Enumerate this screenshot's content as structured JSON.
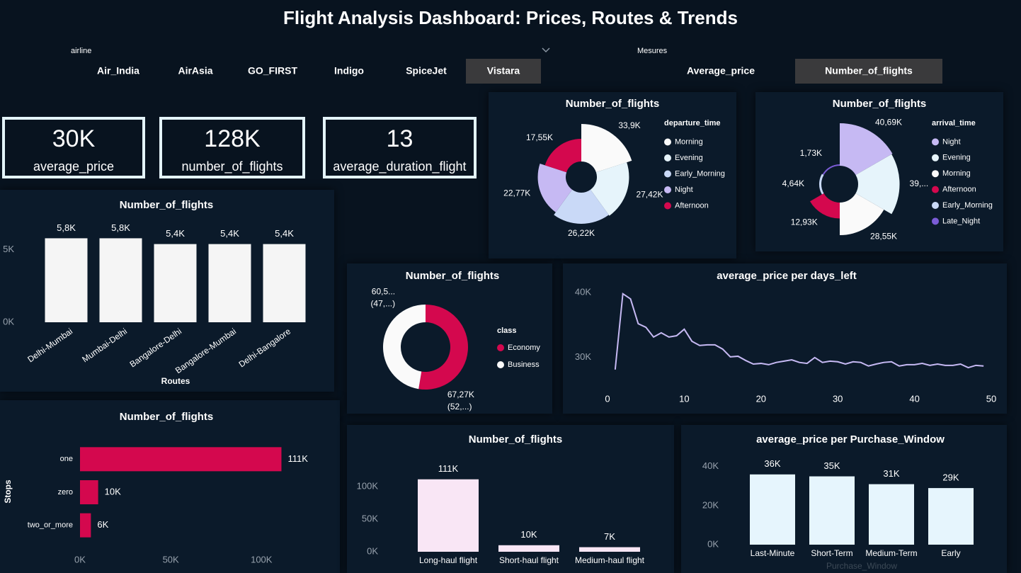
{
  "header": {
    "title": "Flight Analysis Dashboard: Prices, Routes & Trends"
  },
  "slicers": [
    {
      "label": "airline",
      "options": [
        "Air_India",
        "AirAsia",
        "GO_FIRST",
        "Indigo",
        "SpiceJet",
        "Vistara"
      ],
      "selected": "Vistara"
    },
    {
      "label": "Mesures",
      "options": [
        "Average_price",
        "Number_of_flights"
      ],
      "selected": "Number_of_flights"
    }
  ],
  "cards": [
    {
      "value": "30K",
      "label": "average_price"
    },
    {
      "value": "128K",
      "label": "number_of_flights"
    },
    {
      "value": "13",
      "label": "average_duration_flight"
    }
  ],
  "chart_data": [
    {
      "type": "rose",
      "title": "Number_of_flights",
      "legend_title": "departure_time",
      "categories": [
        "Morning",
        "Evening",
        "Early_Morning",
        "Night",
        "Afternoon"
      ],
      "values": [
        33.9,
        27.42,
        26.22,
        22.77,
        17.55
      ],
      "value_labels": [
        "33,9K",
        "27,42K",
        "26,22K",
        "22,77K",
        "17,55K"
      ],
      "colors": [
        "#fafafa",
        "#e6f4fb",
        "#c9d9f7",
        "#c6b9f3",
        "#d4084e"
      ]
    },
    {
      "type": "rose",
      "title": "Number_of_flights",
      "legend_title": "arrival_time",
      "categories": [
        "Night",
        "Evening",
        "Morning",
        "Afternoon",
        "Early_Morning",
        "Late_Night"
      ],
      "values": [
        40.69,
        39.32,
        28.55,
        12.93,
        4.64,
        1.73
      ],
      "value_labels": [
        "40,69K",
        "39,...",
        "28,55K",
        "12,93K",
        "4,64K",
        "1,73K"
      ],
      "colors": [
        "#c6b9f3",
        "#e6f4fb",
        "#fafafa",
        "#d4084e",
        "#c9d9f7",
        "#7b5cd6"
      ]
    },
    {
      "type": "bar",
      "title": "Number_of_flights",
      "x_label": "Routes",
      "categories": [
        "Delhi-Mumbai",
        "Mumbai-Delhi",
        "Bangalore-Delhi",
        "Bangalore-Mumbai",
        "Delhi-Bangalore"
      ],
      "values": [
        5800,
        5800,
        5400,
        5400,
        5400
      ],
      "value_labels": [
        "5,8K",
        "5,8K",
        "5,4K",
        "5,4K",
        "5,4K"
      ],
      "color": "#f5f5f5",
      "ylim": [
        0,
        6700
      ],
      "yticks": [
        {
          "value": 0,
          "label": "0K"
        },
        {
          "value": 5000,
          "label": "5K"
        }
      ]
    },
    {
      "type": "bar",
      "horizontal": true,
      "title": "Number_of_flights",
      "y_label": "Stops",
      "categories": [
        "one",
        "zero",
        "two_or_more"
      ],
      "values": [
        111000,
        10000,
        6000
      ],
      "value_labels": [
        "111K",
        "10K",
        "6K"
      ],
      "color": "#d4084e",
      "xlim": [
        0,
        135000
      ],
      "xticks": [
        {
          "value": 0,
          "label": "0K"
        },
        {
          "value": 50000,
          "label": "50K"
        },
        {
          "value": 100000,
          "label": "100K"
        }
      ]
    },
    {
      "type": "donut",
      "title": "Number_of_flights",
      "legend_title": "class",
      "categories": [
        "Economy",
        "Business"
      ],
      "values": [
        67.27,
        60.59
      ],
      "value_labels": [
        "67,27K",
        "60,5..."
      ],
      "percent_labels": [
        "(52,...)",
        "(47,...)"
      ],
      "colors": [
        "#d4084e",
        "#fafafa"
      ]
    },
    {
      "type": "line",
      "title": "average_price per days_left",
      "x": [
        1,
        2,
        3,
        4,
        5,
        6,
        7,
        8,
        9,
        10,
        11,
        12,
        13,
        14,
        15,
        16,
        17,
        18,
        19,
        20,
        21,
        22,
        23,
        24,
        25,
        26,
        27,
        28,
        29,
        30,
        31,
        32,
        33,
        34,
        35,
        36,
        37,
        38,
        39,
        40,
        41,
        42,
        43,
        44,
        45,
        46,
        47,
        48,
        49
      ],
      "values": [
        28150,
        39800,
        39000,
        35200,
        34650,
        33150,
        33800,
        33150,
        33350,
        34350,
        32500,
        31850,
        31950,
        31950,
        31300,
        30100,
        30200,
        29550,
        29000,
        29100,
        28900,
        29250,
        29450,
        29650,
        29250,
        29100,
        30000,
        29250,
        29450,
        29350,
        29000,
        29350,
        29250,
        28700,
        29000,
        29250,
        29350,
        28700,
        28900,
        28900,
        29100,
        28800,
        29000,
        28800,
        28800,
        29000,
        28450,
        28800,
        28700
      ],
      "color": "#c6b9f3",
      "xlim": [
        0,
        50
      ],
      "ylim": [
        25300,
        41400
      ],
      "xticks": [
        0,
        10,
        20,
        30,
        40,
        50
      ],
      "yticks": [
        {
          "value": 30000,
          "label": "30K"
        },
        {
          "value": 40000,
          "label": "40K"
        }
      ]
    },
    {
      "type": "bar",
      "title": "Number_of_flights",
      "categories": [
        "Long-haul flight",
        "Short-haul flight",
        "Medium-haul flight"
      ],
      "values": [
        111000,
        10000,
        7000
      ],
      "value_labels": [
        "111K",
        "10K",
        "7K"
      ],
      "color": "#f9e6f5",
      "ylim": [
        0,
        140000
      ],
      "yticks": [
        {
          "value": 0,
          "label": "0K"
        },
        {
          "value": 50000,
          "label": "50K"
        },
        {
          "value": 100000,
          "label": "100K"
        }
      ]
    },
    {
      "type": "bar",
      "title": "average_price per Purchase_Window",
      "x_label": "Purchase_Window",
      "categories": [
        "Last-Minute",
        "Short-Term",
        "Medium-Term",
        "Early"
      ],
      "values": [
        36000,
        35000,
        31000,
        29000
      ],
      "value_labels": [
        "36K",
        "35K",
        "31K",
        "29K"
      ],
      "color": "#e6f5fd",
      "ylim": [
        0,
        45000
      ],
      "yticks": [
        {
          "value": 0,
          "label": "0K"
        },
        {
          "value": 20000,
          "label": "20K"
        },
        {
          "value": 40000,
          "label": "40K"
        }
      ]
    }
  ]
}
